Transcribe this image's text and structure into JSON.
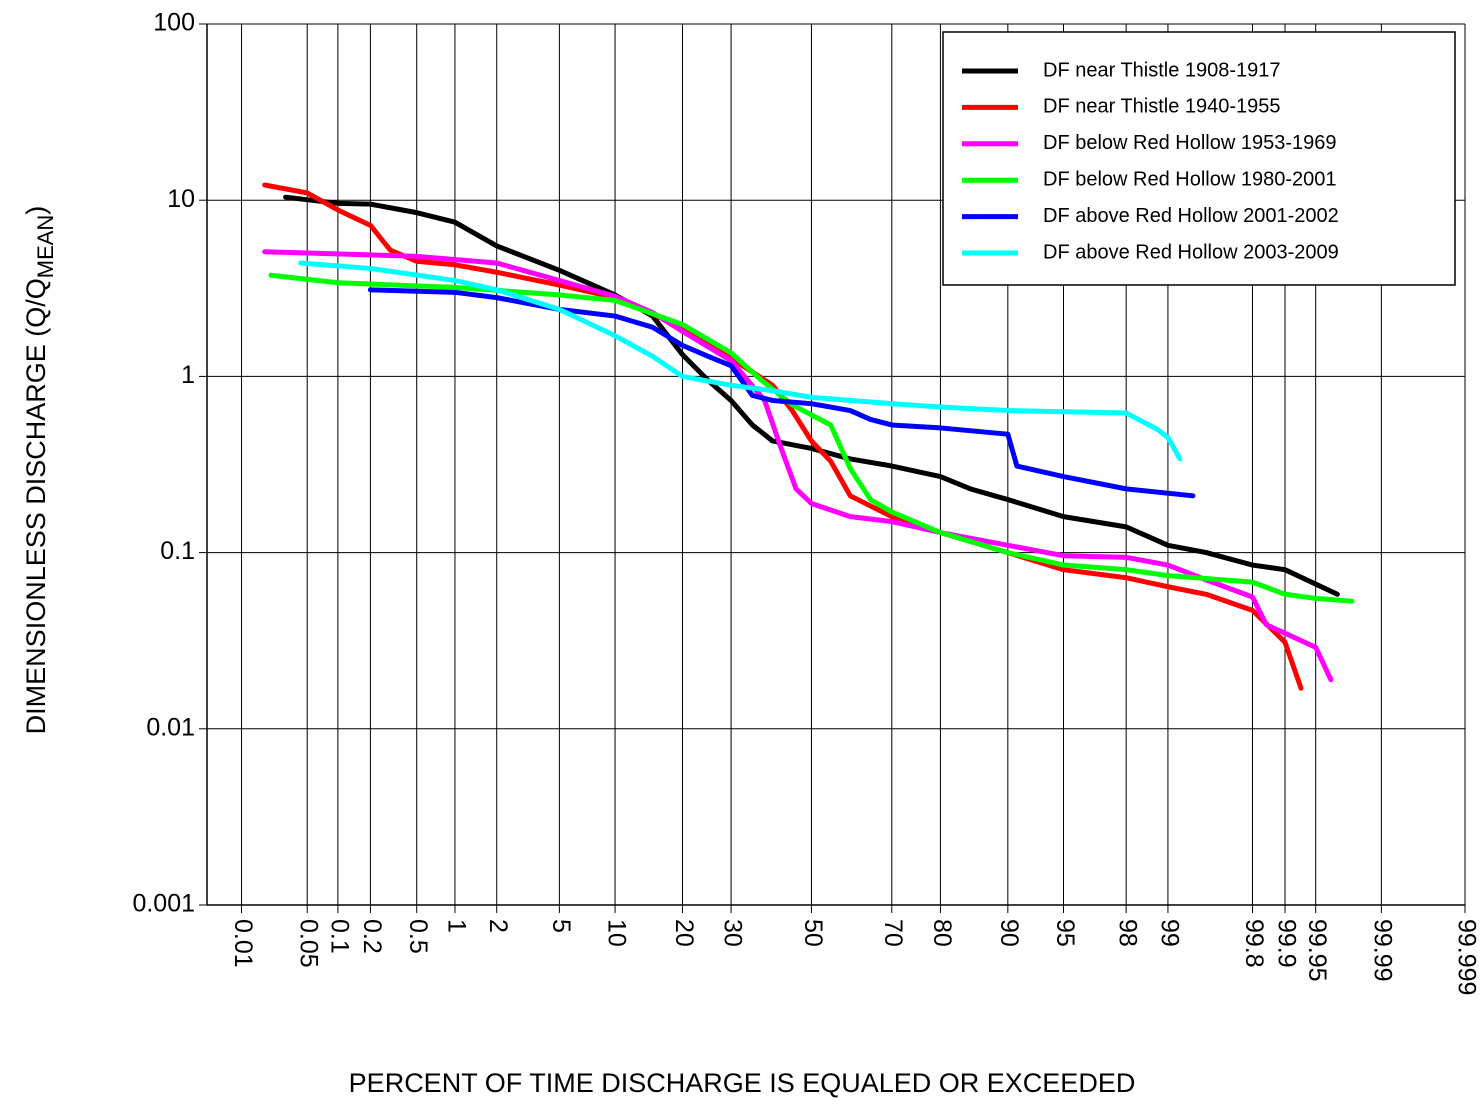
{
  "chart_data": {
    "type": "line",
    "xlabel": "PERCENT OF TIME DISCHARGE IS EQUALED OR EXCEEDED",
    "ylabel": [
      "DIMENSIONLESS DISCHARGE (Q/Q",
      "MEAN",
      ")"
    ],
    "x_scale": "probability",
    "y_scale": "log",
    "xlim": [
      0.004,
      99.999
    ],
    "ylim": [
      0.001,
      100
    ],
    "xticks": [
      0.01,
      0.05,
      0.1,
      0.2,
      0.5,
      1,
      2,
      5,
      10,
      20,
      30,
      50,
      70,
      80,
      90,
      95,
      98,
      99,
      99.8,
      99.9,
      99.95,
      99.99,
      99.999
    ],
    "yticks": [
      0.001,
      0.01,
      0.1,
      1,
      10,
      100
    ],
    "grid": true,
    "legend": "upper right",
    "series": [
      {
        "name": "DF near Thistle 1908-1917",
        "color": "#000000",
        "x": [
          0.03,
          0.1,
          0.2,
          0.5,
          1,
          2,
          5,
          10,
          15,
          20,
          25,
          30,
          35,
          40,
          50,
          60,
          70,
          80,
          85,
          90,
          95,
          98,
          99,
          99.5,
          99.8,
          99.9,
          99.97
        ],
        "values": [
          10.4,
          9.6,
          9.5,
          8.5,
          7.5,
          5.5,
          4.0,
          2.9,
          2.2,
          1.33,
          0.95,
          0.73,
          0.53,
          0.43,
          0.39,
          0.34,
          0.31,
          0.27,
          0.23,
          0.2,
          0.16,
          0.14,
          0.11,
          0.1,
          0.085,
          0.08,
          0.058
        ]
      },
      {
        "name": "DF near Thistle 1940-1955",
        "color": "#ff0000",
        "x": [
          0.018,
          0.05,
          0.1,
          0.2,
          0.3,
          0.5,
          1,
          2,
          5,
          10,
          20,
          30,
          40,
          45,
          50,
          55,
          60,
          70,
          80,
          90,
          95,
          98,
          99,
          99.5,
          99.8,
          99.9,
          99.93
        ],
        "values": [
          12.2,
          11,
          8.8,
          7.2,
          5.2,
          4.5,
          4.3,
          3.9,
          3.3,
          2.8,
          1.9,
          1.27,
          0.89,
          0.64,
          0.43,
          0.33,
          0.21,
          0.16,
          0.13,
          0.1,
          0.08,
          0.072,
          0.064,
          0.058,
          0.047,
          0.031,
          0.017
        ]
      },
      {
        "name": "DF below Red Hollow 1953-1969",
        "color": "#ff00ff",
        "x": [
          0.018,
          0.5,
          2,
          5,
          10,
          15,
          20,
          30,
          38,
          42,
          46,
          50,
          60,
          70,
          80,
          90,
          95,
          98,
          99,
          99.5,
          99.8,
          99.85,
          99.95,
          99.965
        ],
        "values": [
          5.1,
          4.8,
          4.4,
          3.5,
          2.85,
          2.3,
          1.8,
          1.23,
          0.73,
          0.4,
          0.23,
          0.19,
          0.16,
          0.15,
          0.13,
          0.11,
          0.096,
          0.094,
          0.085,
          0.07,
          0.056,
          0.039,
          0.029,
          0.019
        ]
      },
      {
        "name": "DF below Red Hollow 1980-2001",
        "color": "#00ff00",
        "x": [
          0.021,
          0.1,
          1,
          5,
          10,
          20,
          30,
          37,
          45,
          55,
          60,
          65,
          70,
          80,
          90,
          95,
          98,
          99,
          99.8,
          99.9,
          99.95,
          99.979
        ],
        "values": [
          3.75,
          3.4,
          3.2,
          2.9,
          2.7,
          1.97,
          1.36,
          0.96,
          0.69,
          0.53,
          0.3,
          0.2,
          0.17,
          0.13,
          0.1,
          0.085,
          0.08,
          0.074,
          0.068,
          0.058,
          0.055,
          0.053
        ]
      },
      {
        "name": "DF above Red Hollow 2001-2002",
        "color": "#0000ff",
        "x": [
          0.2,
          1,
          2,
          5,
          10,
          15,
          20,
          25,
          30,
          35,
          40,
          50,
          60,
          65,
          70,
          80,
          90,
          91,
          95,
          98,
          99.36
        ],
        "values": [
          3.1,
          3.0,
          2.8,
          2.4,
          2.2,
          1.9,
          1.5,
          1.3,
          1.15,
          0.78,
          0.73,
          0.7,
          0.64,
          0.57,
          0.53,
          0.51,
          0.47,
          0.31,
          0.27,
          0.23,
          0.21
        ]
      },
      {
        "name": "DF above Red Hollow 2003-2009",
        "color": "#00ffff",
        "x": [
          0.043,
          0.2,
          1,
          2,
          5,
          10,
          15,
          20,
          30,
          40,
          50,
          70,
          80,
          90,
          98,
          98.8,
          99.0,
          99.19
        ],
        "values": [
          4.4,
          4.1,
          3.5,
          3.1,
          2.4,
          1.7,
          1.3,
          1.0,
          0.89,
          0.83,
          0.76,
          0.7,
          0.67,
          0.64,
          0.62,
          0.5,
          0.45,
          0.34
        ]
      }
    ]
  }
}
